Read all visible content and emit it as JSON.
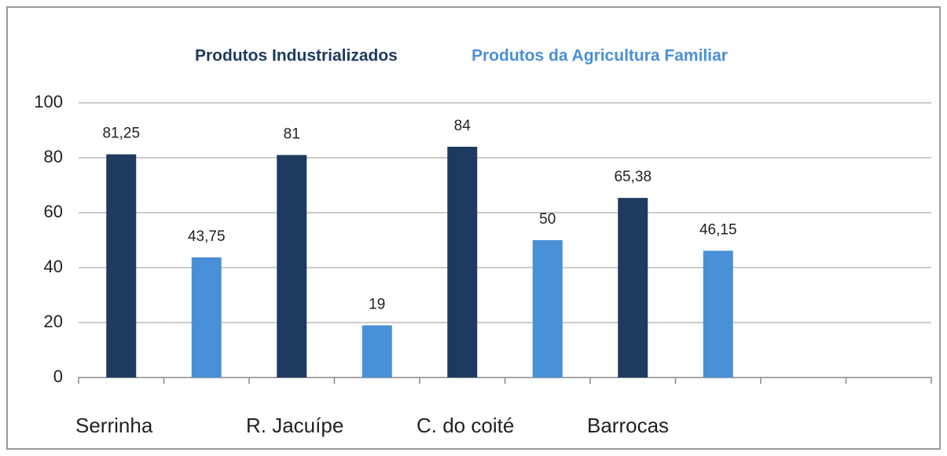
{
  "chart_data": {
    "type": "bar",
    "categories": [
      "Serrinha",
      "R. Jacuípe",
      "C. do coité",
      "Barrocas"
    ],
    "series": [
      {
        "name": "Produtos Industrializados",
        "color": "#1f3a5f",
        "values": [
          81.25,
          81,
          84,
          65.38
        ],
        "value_labels": [
          "81,25",
          "81",
          "84",
          "65,38"
        ]
      },
      {
        "name": "Produtos da Agricultura Familiar",
        "color": "#4a90d6",
        "values": [
          43.75,
          19,
          50,
          46.15
        ],
        "value_labels": [
          "43,75",
          "19",
          "50",
          "46,15"
        ]
      }
    ],
    "ylim": [
      0,
      100
    ],
    "yticks": [
      0,
      20,
      40,
      60,
      80,
      100
    ],
    "grid": true,
    "legend": "top"
  }
}
